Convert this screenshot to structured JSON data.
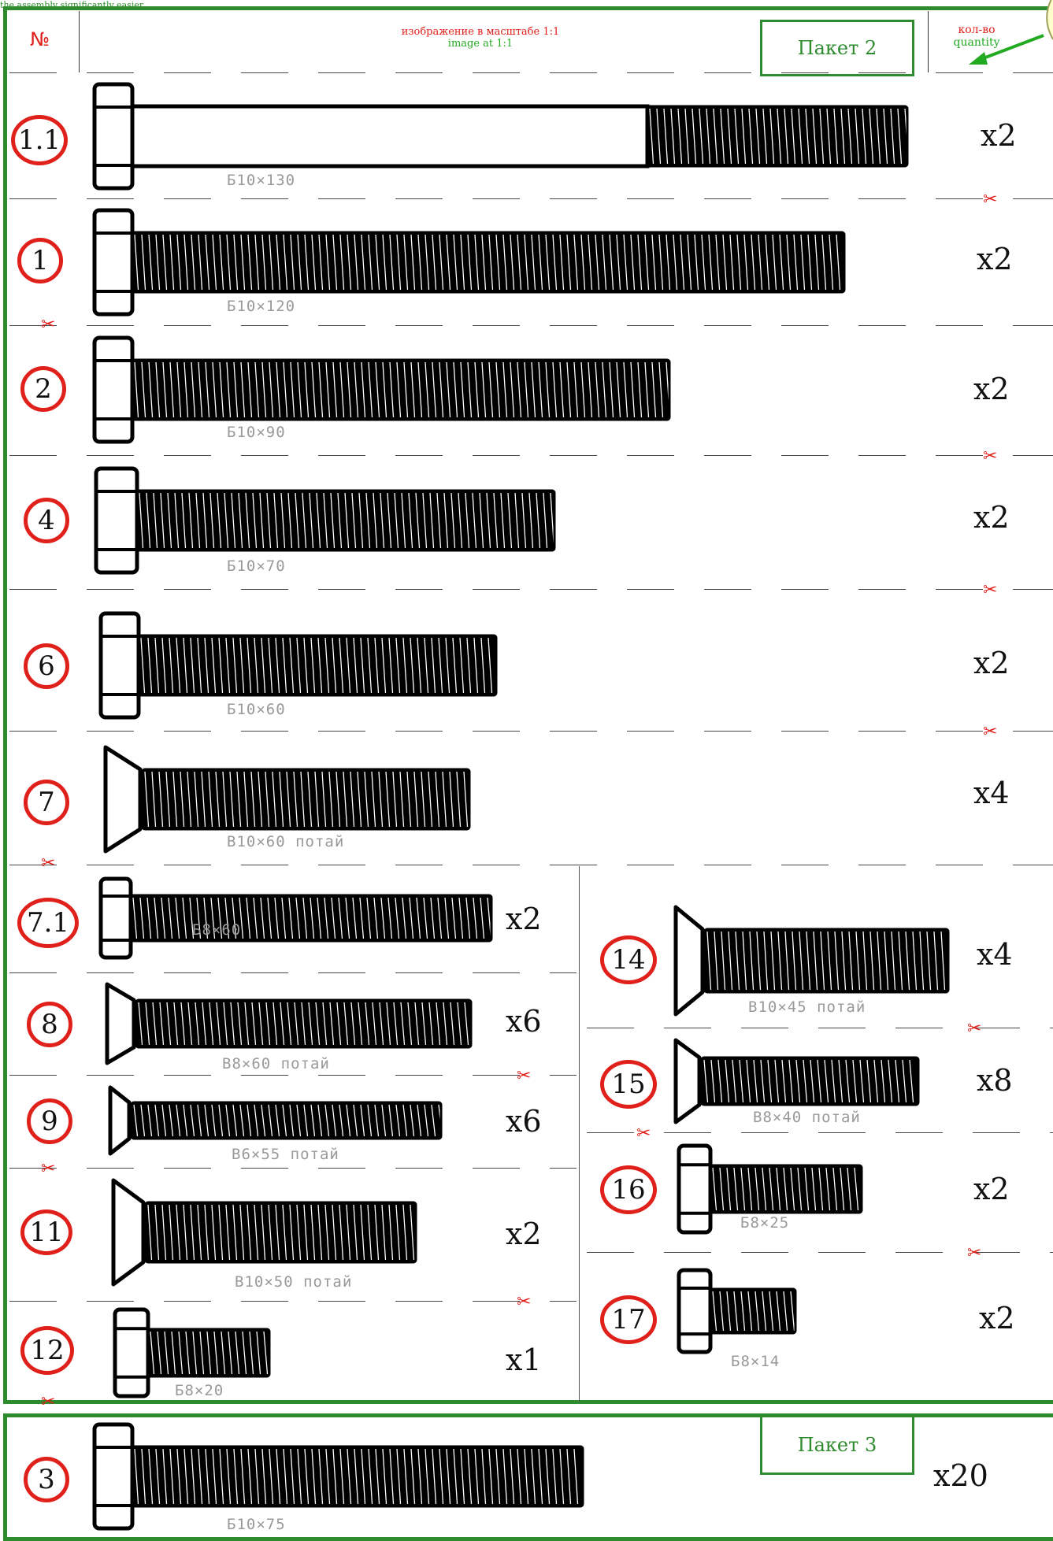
{
  "top_caption": "the assembly significantly easier.",
  "header": {
    "number_symbol": "№",
    "scale_ru": "изображение в масштабе 1:1",
    "scale_en": "image at 1:1",
    "package2": "Пакет 2",
    "qty_ru": "кол-во",
    "qty_en": "quantity"
  },
  "package3": "Пакет 3",
  "items": [
    {
      "num": "1.1",
      "label": "Б10×130",
      "qty": "x2",
      "icon": "hex-bolt"
    },
    {
      "num": "1",
      "label": "Б10×120",
      "qty": "x2",
      "icon": "hex-bolt"
    },
    {
      "num": "2",
      "label": "Б10×90",
      "qty": "x2",
      "icon": "hex-bolt"
    },
    {
      "num": "4",
      "label": "Б10×70",
      "qty": "x2",
      "icon": "hex-bolt"
    },
    {
      "num": "6",
      "label": "Б10×60",
      "qty": "x2",
      "icon": "hex-bolt"
    },
    {
      "num": "7",
      "label": "В10×60 потай",
      "qty": "x4",
      "icon": "countersunk-bolt"
    },
    {
      "num": "7.1",
      "label": "Б8×60",
      "qty": "x2",
      "icon": "hex-bolt"
    },
    {
      "num": "8",
      "label": "В8×60 потай",
      "qty": "x6",
      "icon": "countersunk-bolt"
    },
    {
      "num": "9",
      "label": "В6×55 потай",
      "qty": "x6",
      "icon": "countersunk-bolt"
    },
    {
      "num": "11",
      "label": "В10×50 потай",
      "qty": "x2",
      "icon": "countersunk-bolt"
    },
    {
      "num": "12",
      "label": "Б8×20",
      "qty": "x1",
      "icon": "hex-bolt"
    },
    {
      "num": "14",
      "label": "В10×45 потай",
      "qty": "x4",
      "icon": "countersunk-bolt"
    },
    {
      "num": "15",
      "label": "В8×40 потай",
      "qty": "x8",
      "icon": "countersunk-bolt"
    },
    {
      "num": "16",
      "label": "Б8×25",
      "qty": "x2",
      "icon": "hex-bolt"
    },
    {
      "num": "17",
      "label": "Б8×14",
      "qty": "x2",
      "icon": "hex-bolt"
    },
    {
      "num": "3",
      "label": "Б10×75",
      "qty": "x20",
      "icon": "hex-bolt"
    }
  ],
  "icons": {
    "cut": "scissors-icon"
  },
  "colors": {
    "frame": "#2e8b2e",
    "badge": "#e0201a",
    "title_red": "#e0201a",
    "title_green": "#22aa22"
  }
}
